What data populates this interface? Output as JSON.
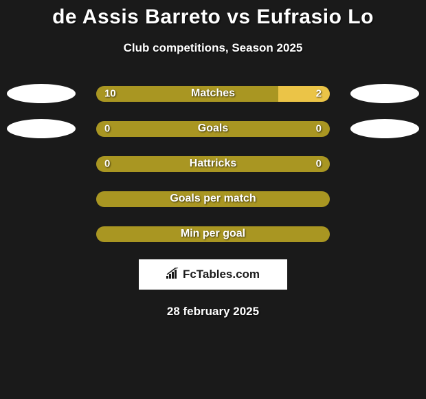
{
  "title": "de Assis Barreto vs Eufrasio Lo",
  "subtitle": "Club competitions, Season 2025",
  "date": "28 february 2025",
  "attribution": "FcTables.com",
  "colors": {
    "background": "#1a1a1a",
    "primary_bar": "#a99622",
    "secondary_bar": "#ebc447",
    "ellipse": "#ffffff",
    "text": "#ffffff",
    "attribution_bg": "#ffffff",
    "attribution_text": "#1a1a1a"
  },
  "rows": [
    {
      "label": "Matches",
      "left_value": "10",
      "right_value": "2",
      "left_pct": 78,
      "left_color": "#a99622",
      "right_color": "#ebc447",
      "show_ellipses": true
    },
    {
      "label": "Goals",
      "left_value": "0",
      "right_value": "0",
      "left_pct": 100,
      "left_color": "#a99622",
      "right_color": "#ebc447",
      "show_ellipses": true
    },
    {
      "label": "Hattricks",
      "left_value": "0",
      "right_value": "0",
      "left_pct": 100,
      "left_color": "#a99622",
      "right_color": "#ebc447",
      "show_ellipses": false
    },
    {
      "label": "Goals per match",
      "left_value": "",
      "right_value": "",
      "left_pct": 100,
      "left_color": "#a99622",
      "right_color": "#ebc447",
      "show_ellipses": false
    },
    {
      "label": "Min per goal",
      "left_value": "",
      "right_value": "",
      "left_pct": 100,
      "left_color": "#a99622",
      "right_color": "#ebc447",
      "show_ellipses": false
    }
  ]
}
